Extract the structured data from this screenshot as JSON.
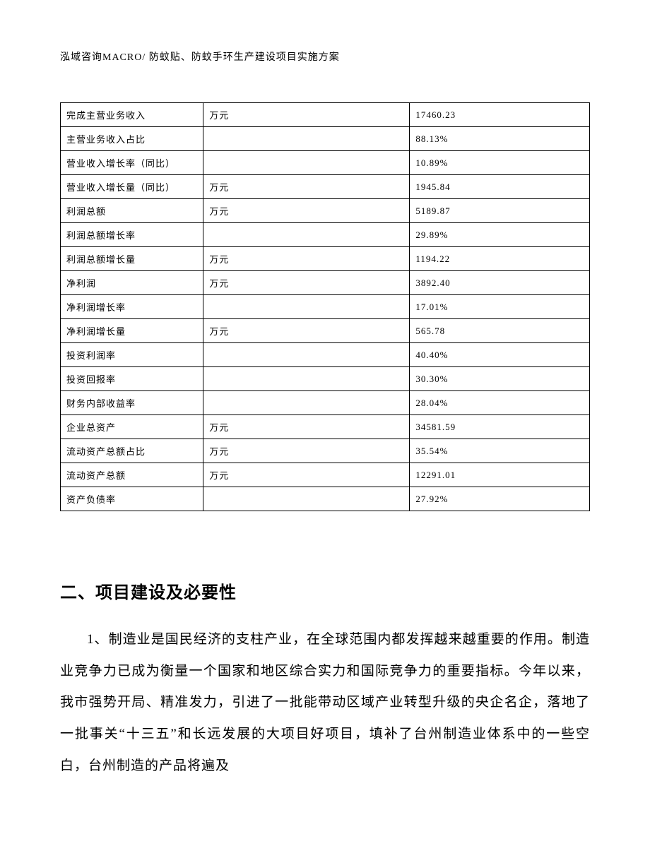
{
  "header": "泓域咨询MACRO/ 防蚊贴、防蚊手环生产建设项目实施方案",
  "table": {
    "rows": [
      {
        "label": "完成主营业务收入",
        "unit": "万元",
        "value": "17460.23"
      },
      {
        "label": "主营业务收入占比",
        "unit": "",
        "value": "88.13%"
      },
      {
        "label": "营业收入增长率（同比）",
        "unit": "",
        "value": "10.89%"
      },
      {
        "label": "营业收入增长量（同比）",
        "unit": "万元",
        "value": "1945.84"
      },
      {
        "label": "利润总额",
        "unit": "万元",
        "value": "5189.87"
      },
      {
        "label": "利润总额增长率",
        "unit": "",
        "value": "29.89%"
      },
      {
        "label": "利润总额增长量",
        "unit": "万元",
        "value": "1194.22"
      },
      {
        "label": "净利润",
        "unit": "万元",
        "value": "3892.40"
      },
      {
        "label": "净利润增长率",
        "unit": "",
        "value": "17.01%"
      },
      {
        "label": "净利润增长量",
        "unit": "万元",
        "value": "565.78"
      },
      {
        "label": "投资利润率",
        "unit": "",
        "value": "40.40%"
      },
      {
        "label": "投资回报率",
        "unit": "",
        "value": "30.30%"
      },
      {
        "label": "财务内部收益率",
        "unit": "",
        "value": "28.04%"
      },
      {
        "label": "企业总资产",
        "unit": "万元",
        "value": "34581.59"
      },
      {
        "label": "流动资产总额占比",
        "unit": "万元",
        "value": "35.54%"
      },
      {
        "label": "流动资产总额",
        "unit": "万元",
        "value": "12291.01"
      },
      {
        "label": "资产负债率",
        "unit": "",
        "value": "27.92%"
      }
    ]
  },
  "section": {
    "heading": "二、项目建设及必要性",
    "paragraph": "1、制造业是国民经济的支柱产业，在全球范围内都发挥越来越重要的作用。制造业竞争力已成为衡量一个国家和地区综合实力和国际竞争力的重要指标。今年以来，我市强势开局、精准发力，引进了一批能带动区域产业转型升级的央企名企，落地了一批事关“十三五”和长远发展的大项目好项目，填补了台州制造业体系中的一些空白，台州制造的产品将遍及"
  }
}
